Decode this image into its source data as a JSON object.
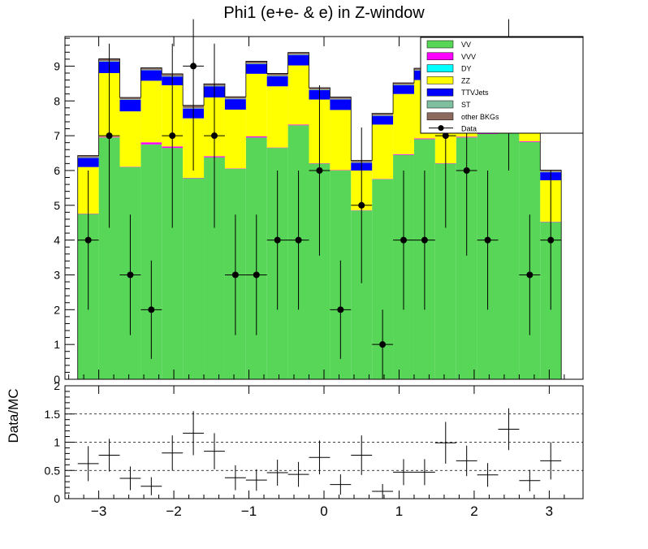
{
  "chart_data": [
    {
      "type": "bar",
      "subtype": "stacked-histogram-with-data-points",
      "title": "Phi1 (e+e- & e) in Z-window",
      "xlabel": "",
      "ylabel": "",
      "xlim": [
        -3.45,
        3.45
      ],
      "ylim": [
        0,
        9.85
      ],
      "x_ticks": [
        -3,
        -2,
        -1,
        0,
        1,
        2,
        3
      ],
      "x_tick_labels": [
        "−3",
        "−2",
        "−1",
        "0",
        "1",
        "2",
        "3"
      ],
      "y_ticks": [
        0,
        1,
        2,
        3,
        4,
        5,
        6,
        7,
        8,
        9
      ],
      "y_tick_labels": [
        "0",
        "1",
        "2",
        "3",
        "4",
        "5",
        "6",
        "7",
        "8",
        "9"
      ],
      "legend_position": "top-right",
      "bin_centers": [
        -3.14,
        -2.86,
        -2.58,
        -2.3,
        -2.02,
        -1.74,
        -1.46,
        -1.18,
        -0.9,
        -0.62,
        -0.34,
        -0.06,
        0.22,
        0.5,
        0.78,
        1.06,
        1.34,
        1.62,
        1.9,
        2.18,
        2.46,
        2.74,
        3.02
      ],
      "bin_edges": [
        -3.28,
        -3.0,
        -2.72,
        -2.44,
        -2.16,
        -1.88,
        -1.6,
        -1.32,
        -1.04,
        -0.76,
        -0.48,
        -0.2,
        0.08,
        0.36,
        0.64,
        0.92,
        1.2,
        1.48,
        1.76,
        2.04,
        2.32,
        2.6,
        2.88,
        3.16
      ],
      "series": [
        {
          "name": "VV",
          "color": "#57d657",
          "values": [
            4.75,
            6.95,
            6.1,
            6.75,
            6.65,
            5.78,
            6.38,
            6.05,
            6.95,
            6.65,
            7.3,
            6.2,
            6.0,
            4.85,
            5.75,
            6.45,
            6.9,
            6.2,
            6.95,
            7.05,
            7.1,
            6.82,
            4.52
          ]
        },
        {
          "name": "VVV",
          "color": "#ff00ff",
          "values": [
            0.01,
            0.02,
            0.01,
            0.06,
            0.04,
            0.01,
            0.03,
            0.01,
            0.03,
            0.01,
            0.02,
            0.01,
            0.01,
            0.01,
            0.01,
            0.02,
            0.02,
            0.01,
            0.02,
            0.02,
            0.02,
            0.02,
            0.01
          ]
        },
        {
          "name": "DY",
          "color": "#00ffff",
          "values": [
            0.0,
            0.0,
            0.0,
            0.0,
            0.0,
            0.0,
            0.0,
            0.0,
            0.0,
            0.0,
            0.0,
            0.0,
            0.0,
            0.0,
            0.0,
            0.0,
            0.0,
            0.0,
            0.0,
            0.0,
            0.0,
            0.0,
            0.0
          ]
        },
        {
          "name": "ZZ",
          "color": "#ffff00",
          "values": [
            1.34,
            1.83,
            1.59,
            1.77,
            1.76,
            1.71,
            1.69,
            1.69,
            1.8,
            1.76,
            1.7,
            1.83,
            1.73,
            1.14,
            1.56,
            1.73,
            1.68,
            1.8,
            1.5,
            1.45,
            1.6,
            1.4,
            1.19
          ]
        },
        {
          "name": "TTVJets",
          "color": "#0000ff",
          "values": [
            0.26,
            0.33,
            0.33,
            0.3,
            0.25,
            0.28,
            0.32,
            0.3,
            0.28,
            0.29,
            0.3,
            0.27,
            0.3,
            0.22,
            0.25,
            0.25,
            0.27,
            0.3,
            0.25,
            0.25,
            0.25,
            0.25,
            0.23
          ]
        },
        {
          "name": "ST",
          "color": "#7fbfa0",
          "values": [
            0.02,
            0.02,
            0.02,
            0.02,
            0.02,
            0.02,
            0.02,
            0.02,
            0.02,
            0.02,
            0.02,
            0.02,
            0.02,
            0.02,
            0.02,
            0.02,
            0.02,
            0.02,
            0.02,
            0.02,
            0.02,
            0.02,
            0.02
          ]
        },
        {
          "name": "other BKGs",
          "color": "#8c6a5f",
          "values": [
            0.05,
            0.06,
            0.05,
            0.05,
            0.06,
            0.07,
            0.05,
            0.05,
            0.06,
            0.06,
            0.05,
            0.05,
            0.05,
            0.05,
            0.05,
            0.05,
            0.05,
            0.06,
            0.05,
            0.05,
            0.05,
            0.05,
            0.04
          ]
        }
      ],
      "data_points": {
        "name": "Data",
        "x": [
          -3.14,
          -2.86,
          -2.58,
          -2.3,
          -2.02,
          -1.74,
          -1.46,
          -1.18,
          -0.9,
          -0.62,
          -0.34,
          -0.06,
          0.22,
          0.5,
          0.78,
          1.06,
          1.34,
          1.62,
          1.9,
          2.18,
          2.46,
          2.74,
          3.02
        ],
        "y": [
          4,
          7,
          3,
          2,
          7,
          9,
          7,
          3,
          3,
          4,
          4,
          6,
          2,
          5,
          1,
          4,
          4,
          7,
          6,
          4,
          9,
          3,
          4
        ],
        "xerr": 0.14
      }
    },
    {
      "type": "scatter",
      "subtype": "ratio-with-errorbars",
      "xlabel": "",
      "ylabel": "Data/MC",
      "xlim": [
        -3.45,
        3.45
      ],
      "ylim": [
        0,
        2
      ],
      "y_ticks": [
        0,
        0.5,
        1,
        1.5,
        2
      ],
      "y_tick_labels": [
        "0",
        "0.5",
        "1",
        "1.5",
        "2"
      ],
      "x_ticks": [
        -3,
        -2,
        -1,
        0,
        1,
        2,
        3
      ],
      "x_tick_labels": [
        "−3",
        "−2",
        "−1",
        "0",
        "1",
        "2",
        "3"
      ],
      "reference_lines": [
        0.5,
        1,
        1.5
      ],
      "x": [
        -3.14,
        -2.86,
        -2.58,
        -2.3,
        -2.02,
        -1.74,
        -1.46,
        -1.18,
        -0.9,
        -0.62,
        -0.34,
        -0.06,
        0.22,
        0.5,
        0.78,
        1.06,
        1.34,
        1.62,
        1.9,
        2.18,
        2.46,
        2.74,
        3.02
      ],
      "y": [
        0.62,
        0.77,
        0.36,
        0.22,
        0.81,
        1.16,
        0.84,
        0.37,
        0.33,
        0.46,
        0.43,
        0.73,
        0.25,
        0.77,
        0.13,
        0.47,
        0.47,
        0.99,
        0.67,
        0.42,
        1.23,
        0.32,
        0.67
      ],
      "yerr": [
        0.31,
        0.29,
        0.21,
        0.16,
        0.31,
        0.39,
        0.32,
        0.22,
        0.19,
        0.23,
        0.22,
        0.3,
        0.18,
        0.35,
        0.13,
        0.23,
        0.23,
        0.37,
        0.27,
        0.21,
        0.37,
        0.19,
        0.33
      ],
      "xerr": 0.14
    }
  ]
}
